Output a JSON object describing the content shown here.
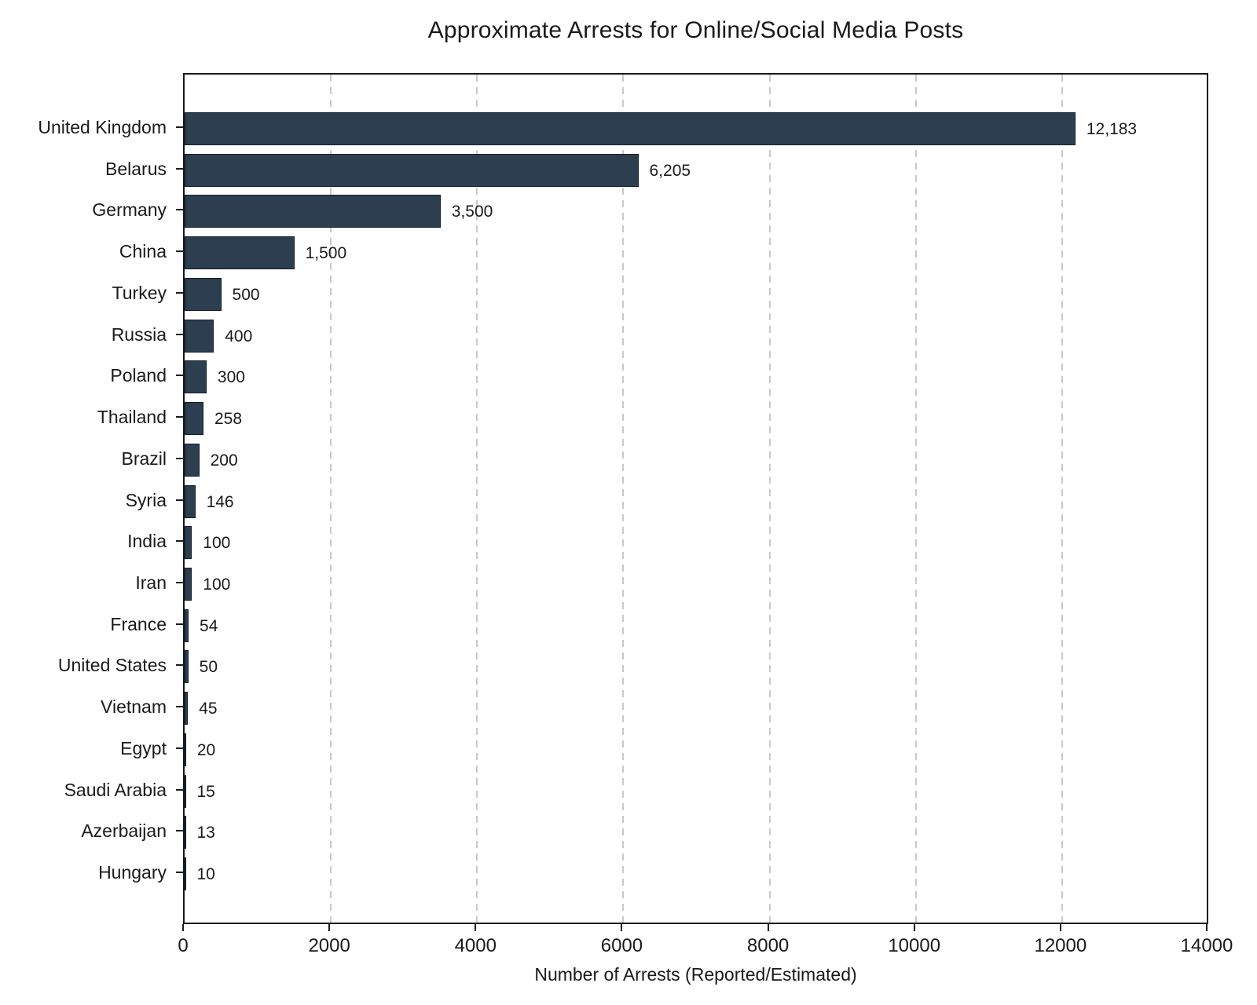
{
  "chart_data": {
    "type": "bar",
    "orientation": "horizontal",
    "title": "Approximate Arrests for Online/Social Media Posts",
    "xlabel": "Number of Arrests (Reported/Estimated)",
    "xlim": [
      0,
      14000
    ],
    "x_ticks": [
      {
        "value": 0,
        "label": "0"
      },
      {
        "value": 2000,
        "label": "2000"
      },
      {
        "value": 4000,
        "label": "4000"
      },
      {
        "value": 6000,
        "label": "6000"
      },
      {
        "value": 8000,
        "label": "8000"
      },
      {
        "value": 10000,
        "label": "10000"
      },
      {
        "value": 12000,
        "label": "12000"
      },
      {
        "value": 14000,
        "label": "14000"
      }
    ],
    "grid": "vertical dashed gridlines at x ticks",
    "legend": "none",
    "bars": [
      {
        "label": "United Kingdom",
        "value": 12183,
        "value_label": "12,183"
      },
      {
        "label": "Belarus",
        "value": 6205,
        "value_label": "6,205"
      },
      {
        "label": "Germany",
        "value": 3500,
        "value_label": "3,500"
      },
      {
        "label": "China",
        "value": 1500,
        "value_label": "1,500"
      },
      {
        "label": "Turkey",
        "value": 500,
        "value_label": "500"
      },
      {
        "label": "Russia",
        "value": 400,
        "value_label": "400"
      },
      {
        "label": "Poland",
        "value": 300,
        "value_label": "300"
      },
      {
        "label": "Thailand",
        "value": 258,
        "value_label": "258"
      },
      {
        "label": "Brazil",
        "value": 200,
        "value_label": "200"
      },
      {
        "label": "Syria",
        "value": 146,
        "value_label": "146"
      },
      {
        "label": "India",
        "value": 100,
        "value_label": "100"
      },
      {
        "label": "Iran",
        "value": 100,
        "value_label": "100"
      },
      {
        "label": "France",
        "value": 54,
        "value_label": "54"
      },
      {
        "label": "United States",
        "value": 50,
        "value_label": "50"
      },
      {
        "label": "Vietnam",
        "value": 45,
        "value_label": "45"
      },
      {
        "label": "Egypt",
        "value": 20,
        "value_label": "20"
      },
      {
        "label": "Saudi Arabia",
        "value": 15,
        "value_label": "15"
      },
      {
        "label": "Azerbaijan",
        "value": 13,
        "value_label": "13"
      },
      {
        "label": "Hungary",
        "value": 10,
        "value_label": "10"
      }
    ],
    "colors": {
      "bar_fill": "#2d3e50",
      "bar_edge": "#141f2b",
      "grid": "#c9c9c9",
      "axis": "#1a1a1a",
      "text": "#1a1a1a",
      "background": "#ffffff"
    }
  }
}
